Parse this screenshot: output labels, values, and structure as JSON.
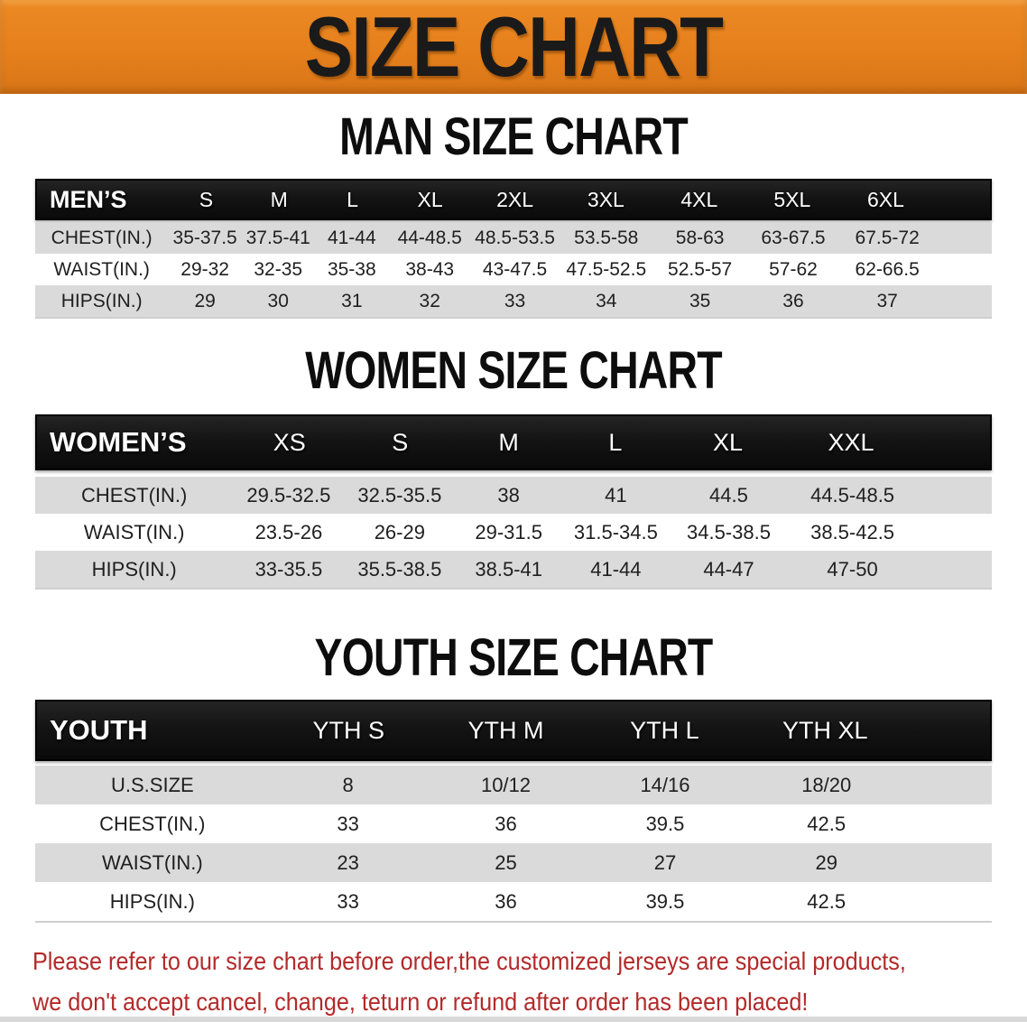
{
  "banner": {
    "title": "SIZE CHART"
  },
  "sections": [
    {
      "key": "men",
      "heading": "MAN SIZE CHART",
      "table": {
        "header_label": "MEN’S",
        "columns": [
          "S",
          "M",
          "L",
          "XL",
          "2XL",
          "3XL",
          "4XL",
          "5XL",
          "6XL"
        ],
        "rows": [
          {
            "label": "CHEST(IN.)",
            "values": [
              "35-37.5",
              "37.5-41",
              "41-44",
              "44-48.5",
              "48.5-53.5",
              "53.5-58",
              "58-63",
              "63-67.5",
              "67.5-72"
            ]
          },
          {
            "label": "WAIST(IN.)",
            "values": [
              "29-32",
              "32-35",
              "35-38",
              "38-43",
              "43-47.5",
              "47.5-52.5",
              "52.5-57",
              "57-62",
              "62-66.5"
            ]
          },
          {
            "label": "HIPS(IN.)",
            "values": [
              "29",
              "30",
              "31",
              "32",
              "33",
              "34",
              "35",
              "36",
              "37"
            ]
          }
        ]
      }
    },
    {
      "key": "women",
      "heading": "WOMEN SIZE CHART",
      "table": {
        "header_label": "WOMEN’S",
        "columns": [
          "XS",
          "S",
          "M",
          "L",
          "XL",
          "XXL"
        ],
        "rows": [
          {
            "label": "CHEST(IN.)",
            "values": [
              "29.5-32.5",
              "32.5-35.5",
              "38",
              "41",
              "44.5",
              "44.5-48.5"
            ]
          },
          {
            "label": "WAIST(IN.)",
            "values": [
              "23.5-26",
              "26-29",
              "29-31.5",
              "31.5-34.5",
              "34.5-38.5",
              "38.5-42.5"
            ]
          },
          {
            "label": "HIPS(IN.)",
            "values": [
              "33-35.5",
              "35.5-38.5",
              "38.5-41",
              "41-44",
              "44-47",
              "47-50"
            ]
          }
        ]
      }
    },
    {
      "key": "youth",
      "heading": "YOUTH SIZE CHART",
      "table": {
        "header_label": "YOUTH",
        "columns": [
          "YTH S",
          "YTH M",
          "YTH L",
          "YTH XL"
        ],
        "rows": [
          {
            "label": "U.S.SIZE",
            "values": [
              "8",
              "10/12",
              "14/16",
              "18/20"
            ]
          },
          {
            "label": "CHEST(IN.)",
            "values": [
              "33",
              "36",
              "39.5",
              "42.5"
            ]
          },
          {
            "label": "WAIST(IN.)",
            "values": [
              "23",
              "25",
              "27",
              "29"
            ]
          },
          {
            "label": "HIPS(IN.)",
            "values": [
              "33",
              "36",
              "39.5",
              "42.5"
            ]
          }
        ]
      }
    }
  ],
  "disclaimer": {
    "lines": [
      "Please refer to our size chart before order,the customized jerseys are special products,",
      "we don't accept cancel, change, teturn or refund after order has been placed!"
    ]
  },
  "colors": {
    "banner_bg": "#E5801C",
    "banner_text": "#1A1A1A",
    "header_bar_bg": "#141414",
    "header_bar_text": "#FFFFFF",
    "row_gray": "#DADADA",
    "row_white": "#FFFFFF",
    "body_text": "#1F1F1F",
    "disclaimer_red": "#B32A2A"
  }
}
